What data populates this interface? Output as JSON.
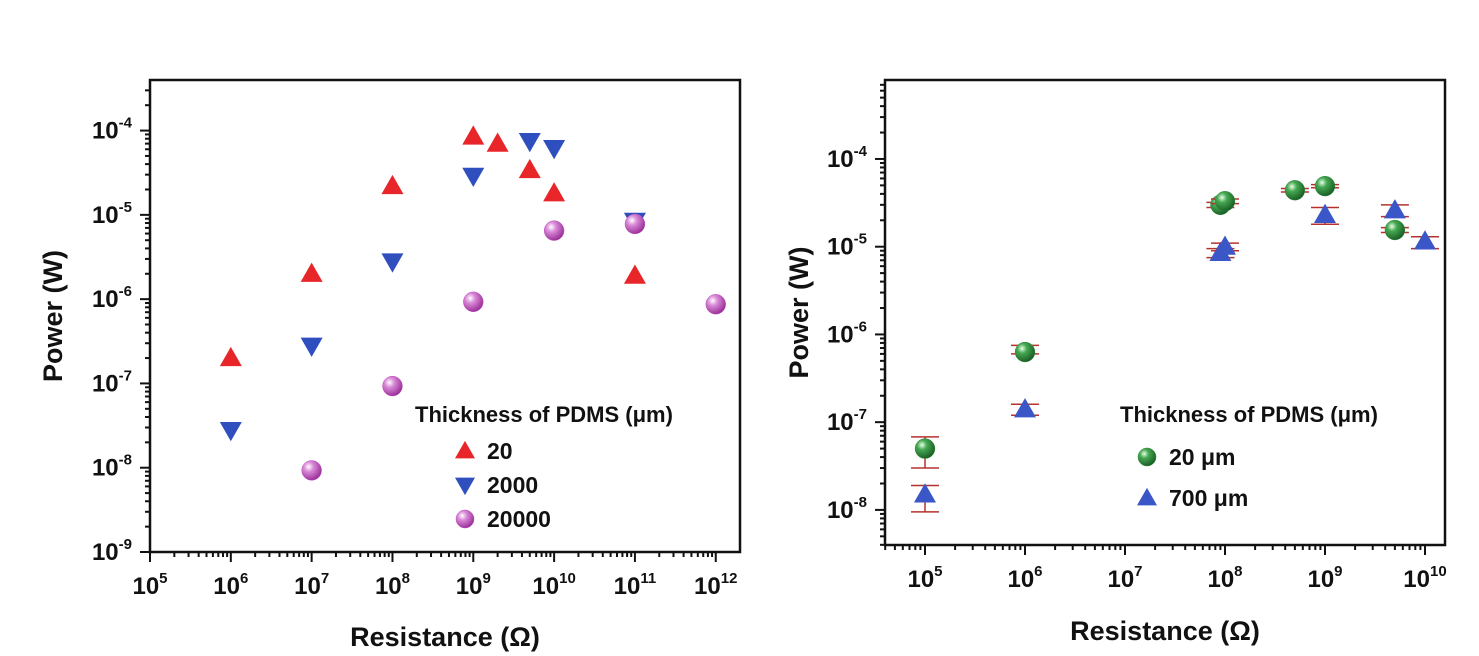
{
  "chart_data": [
    {
      "type": "scatter",
      "title": "",
      "xlabel": "Resistance (Ω)",
      "ylabel": "Power (W)",
      "xscale": "log",
      "yscale": "log",
      "xlim_exp": [
        5,
        12.3
      ],
      "ylim_exp": [
        -9,
        -3.4
      ],
      "xticks": [
        {
          "exp": 5,
          "label": "10",
          "sup": "5"
        },
        {
          "exp": 6,
          "label": "10",
          "sup": "6"
        },
        {
          "exp": 7,
          "label": "10",
          "sup": "7"
        },
        {
          "exp": 8,
          "label": "10",
          "sup": "8"
        },
        {
          "exp": 9,
          "label": "10",
          "sup": "9"
        },
        {
          "exp": 10,
          "label": "10",
          "sup": "10"
        },
        {
          "exp": 11,
          "label": "10",
          "sup": "11"
        },
        {
          "exp": 12,
          "label": "10",
          "sup": "12"
        }
      ],
      "yticks": [
        {
          "exp": -4,
          "label": "10",
          "sup": "-4"
        },
        {
          "exp": -5,
          "label": "10",
          "sup": "-5"
        },
        {
          "exp": -6,
          "label": "10",
          "sup": "-6"
        },
        {
          "exp": -7,
          "label": "10",
          "sup": "-7"
        },
        {
          "exp": -8,
          "label": "10",
          "sup": "-8"
        },
        {
          "exp": -9,
          "label": "10",
          "sup": "-9"
        }
      ],
      "legend": {
        "title": "Thickness of PDMS (μm)",
        "position": "bottom-right"
      },
      "series": [
        {
          "name": "20",
          "marker": "triangle-up",
          "color": "#e8262a",
          "points": [
            {
              "x": 1000000.0,
              "y": 2e-07
            },
            {
              "x": 10000000.0,
              "y": 2e-06
            },
            {
              "x": 100000000.0,
              "y": 2.2e-05
            },
            {
              "x": 1000000000.0,
              "y": 8.5e-05
            },
            {
              "x": 2000000000.0,
              "y": 7e-05
            },
            {
              "x": 5000000000.0,
              "y": 3.4e-05
            },
            {
              "x": 10000000000.0,
              "y": 1.8e-05
            },
            {
              "x": 100000000000.0,
              "y": 1.9e-06
            }
          ]
        },
        {
          "name": "2000",
          "marker": "triangle-down",
          "color": "#2f4fbf",
          "points": [
            {
              "x": 1000000.0,
              "y": 2.8e-08
            },
            {
              "x": 10000000.0,
              "y": 2.8e-07
            },
            {
              "x": 100000000.0,
              "y": 2.8e-06
            },
            {
              "x": 1000000000.0,
              "y": 2.9e-05
            },
            {
              "x": 5000000000.0,
              "y": 7.5e-05
            },
            {
              "x": 10000000000.0,
              "y": 6.2e-05
            },
            {
              "x": 100000000000.0,
              "y": 8.5e-06
            }
          ]
        },
        {
          "name": "20000",
          "marker": "sphere",
          "color": "#c04fbe",
          "points": [
            {
              "x": 10000000.0,
              "y": 9.3e-09
            },
            {
              "x": 100000000.0,
              "y": 9.3e-08
            },
            {
              "x": 1000000000.0,
              "y": 9.3e-07
            },
            {
              "x": 10000000000.0,
              "y": 6.5e-06
            },
            {
              "x": 100000000000.0,
              "y": 7.8e-06
            },
            {
              "x": 1000000000000.0,
              "y": 8.7e-07
            }
          ]
        }
      ]
    },
    {
      "type": "scatter",
      "title": "",
      "xlabel": "Resistance (Ω)",
      "ylabel": "Power (W)",
      "xscale": "log",
      "yscale": "log",
      "xlim_exp": [
        4.6,
        10.2
      ],
      "ylim_exp": [
        -8.4,
        -3.1
      ],
      "xticks": [
        {
          "exp": 5,
          "label": "10",
          "sup": "5"
        },
        {
          "exp": 6,
          "label": "10",
          "sup": "6"
        },
        {
          "exp": 7,
          "label": "10",
          "sup": "7"
        },
        {
          "exp": 8,
          "label": "10",
          "sup": "8"
        },
        {
          "exp": 9,
          "label": "10",
          "sup": "9"
        },
        {
          "exp": 10,
          "label": "10",
          "sup": "10"
        }
      ],
      "yticks": [
        {
          "exp": -4,
          "label": "10",
          "sup": "-4"
        },
        {
          "exp": -5,
          "label": "10",
          "sup": "-5"
        },
        {
          "exp": -6,
          "label": "10",
          "sup": "-6"
        },
        {
          "exp": -7,
          "label": "10",
          "sup": "-7"
        },
        {
          "exp": -8,
          "label": "10",
          "sup": "-8"
        }
      ],
      "legend": {
        "title": "Thickness of PDMS (μm)",
        "position": "bottom-right"
      },
      "series": [
        {
          "name": "20 μm",
          "marker": "sphere",
          "color": "#2e8b3e",
          "points": [
            {
              "x": 100000.0,
              "y": 5e-08,
              "err_lo": 3e-08,
              "err_hi": 6.8e-08
            },
            {
              "x": 1000000.0,
              "y": 6.3e-07,
              "err_lo": 6e-07,
              "err_hi": 7.5e-07
            },
            {
              "x": 90000000.0,
              "y": 3e-05,
              "err_lo": 2.8e-05,
              "err_hi": 3.2e-05
            },
            {
              "x": 100000000.0,
              "y": 3.3e-05,
              "err_lo": 3.1e-05,
              "err_hi": 3.5e-05
            },
            {
              "x": 500000000.0,
              "y": 4.4e-05,
              "err_lo": 4.2e-05,
              "err_hi": 4.6e-05
            },
            {
              "x": 1000000000.0,
              "y": 4.9e-05,
              "err_lo": 4.7e-05,
              "err_hi": 5.1e-05
            },
            {
              "x": 5000000000.0,
              "y": 1.55e-05,
              "err_lo": 1.45e-05,
              "err_hi": 1.65e-05
            }
          ]
        },
        {
          "name": "700 μm",
          "marker": "triangle-up",
          "color": "#3b56c6",
          "points": [
            {
              "x": 100000.0,
              "y": 1.5e-08,
              "err_lo": 9.5e-09,
              "err_hi": 1.9e-08
            },
            {
              "x": 1000000.0,
              "y": 1.4e-07,
              "err_lo": 1.2e-07,
              "err_hi": 1.6e-07
            },
            {
              "x": 90000000.0,
              "y": 8.5e-06,
              "err_lo": 7.5e-06,
              "err_hi": 9.5e-06
            },
            {
              "x": 100000000.0,
              "y": 1e-05,
              "err_lo": 9e-06,
              "err_hi": 1.1e-05
            },
            {
              "x": 1000000000.0,
              "y": 2.3e-05,
              "err_lo": 1.8e-05,
              "err_hi": 2.8e-05
            },
            {
              "x": 5000000000.0,
              "y": 2.6e-05,
              "err_lo": 2.2e-05,
              "err_hi": 3e-05
            },
            {
              "x": 10000000000.0,
              "y": 1.15e-05,
              "err_lo": 9.5e-06,
              "err_hi": 1.3e-05
            }
          ]
        }
      ]
    }
  ]
}
